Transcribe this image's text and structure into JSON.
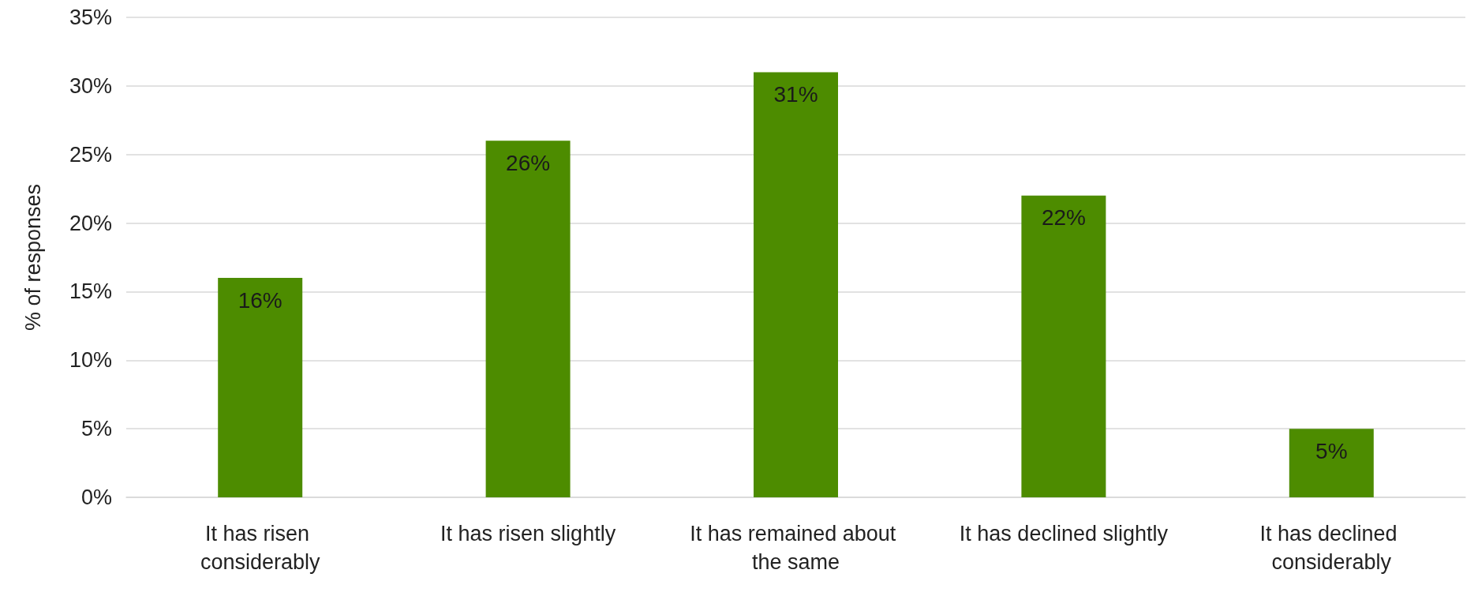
{
  "chart_data": {
    "type": "bar",
    "ylabel": "% of responses",
    "categories": [
      "It has risen considerably",
      "It has risen slightly",
      "It has remained about the same",
      "It has declined slightly",
      "It has declined considerably"
    ],
    "values": [
      16,
      26,
      31,
      22,
      5
    ],
    "value_labels": [
      "16%",
      "26%",
      "31%",
      "22%",
      "5%"
    ],
    "color": "#4d8c00",
    "ylim": [
      0,
      35
    ],
    "yticks": [
      {
        "value": 0,
        "label": "0%"
      },
      {
        "value": 5,
        "label": "5%"
      },
      {
        "value": 10,
        "label": "10%"
      },
      {
        "value": 15,
        "label": "15%"
      },
      {
        "value": 20,
        "label": "20%"
      },
      {
        "value": 25,
        "label": "25%"
      },
      {
        "value": 30,
        "label": "30%"
      },
      {
        "value": 35,
        "label": "35%"
      }
    ],
    "grid": "y"
  }
}
